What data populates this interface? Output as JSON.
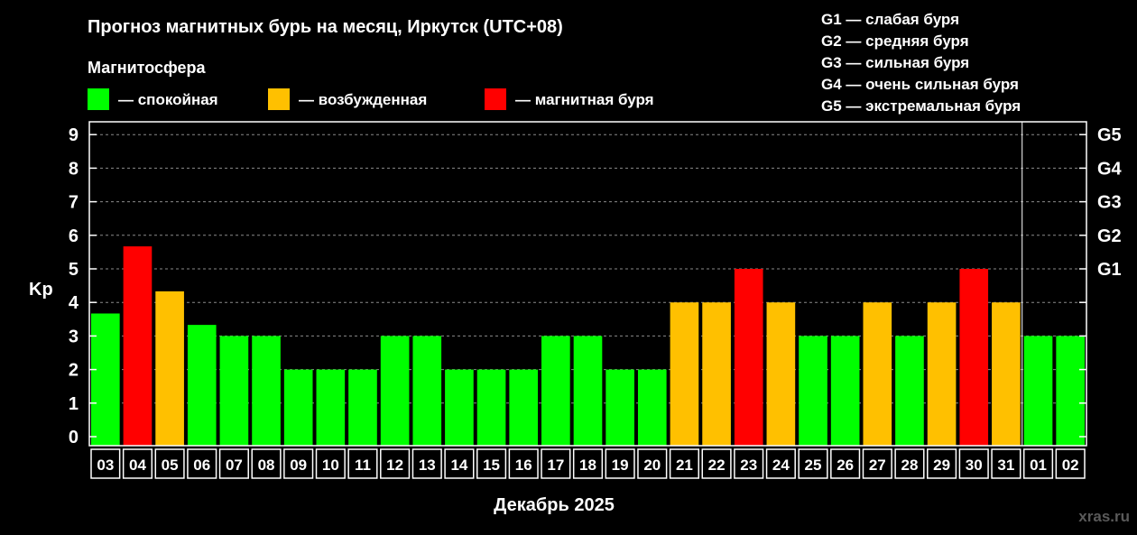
{
  "title": "Прогноз магнитных бурь на месяц, Иркутск (UTC+08)",
  "subtitle": "Магнитосфера",
  "legend": [
    {
      "label": "— спокойная",
      "color": "#00ff00"
    },
    {
      "label": "— возбужденная",
      "color": "#ffc000"
    },
    {
      "label": "— магнитная буря",
      "color": "#ff0000"
    }
  ],
  "g_scale_legend": [
    "G1 — слабая буря",
    "G2 — средняя буря",
    "G3 — сильная буря",
    "G4 — очень сильная буря",
    "G5 — экстремальная буря"
  ],
  "watermark": "xras.ru",
  "colors": {
    "quiet": "#00ff00",
    "active": "#ffc000",
    "storm": "#ff0000",
    "grid": "#8a8a8a"
  },
  "chart_data": {
    "type": "bar",
    "title": "Прогноз магнитных бурь на месяц, Иркутск (UTC+08)",
    "xlabel": "Декабрь 2025",
    "ylabel": "Kp",
    "ylim": [
      0,
      9
    ],
    "yticks": [
      0,
      1,
      2,
      3,
      4,
      5,
      6,
      7,
      8,
      9
    ],
    "right_axis_ticks": [
      {
        "kp": 5,
        "label": "G1"
      },
      {
        "kp": 6,
        "label": "G2"
      },
      {
        "kp": 7,
        "label": "G3"
      },
      {
        "kp": 8,
        "label": "G4"
      },
      {
        "kp": 9,
        "label": "G5"
      }
    ],
    "grid": true,
    "categories": [
      "03",
      "04",
      "05",
      "06",
      "07",
      "08",
      "09",
      "10",
      "11",
      "12",
      "13",
      "14",
      "15",
      "16",
      "17",
      "18",
      "19",
      "20",
      "21",
      "22",
      "23",
      "24",
      "25",
      "26",
      "27",
      "28",
      "29",
      "30",
      "31",
      "01",
      "02"
    ],
    "values": [
      3.67,
      5.67,
      4.33,
      3.33,
      3,
      3,
      2,
      2,
      2,
      3,
      3,
      2,
      2,
      2,
      3,
      3,
      2,
      2,
      4,
      4,
      5,
      4,
      3,
      3,
      4,
      3,
      4,
      5,
      4,
      3,
      3
    ],
    "levels": [
      "quiet",
      "storm",
      "active",
      "quiet",
      "quiet",
      "quiet",
      "quiet",
      "quiet",
      "quiet",
      "quiet",
      "quiet",
      "quiet",
      "quiet",
      "quiet",
      "quiet",
      "quiet",
      "quiet",
      "quiet",
      "active",
      "active",
      "storm",
      "active",
      "quiet",
      "quiet",
      "active",
      "quiet",
      "active",
      "storm",
      "active",
      "quiet",
      "quiet"
    ],
    "month_divider_after": "31"
  }
}
